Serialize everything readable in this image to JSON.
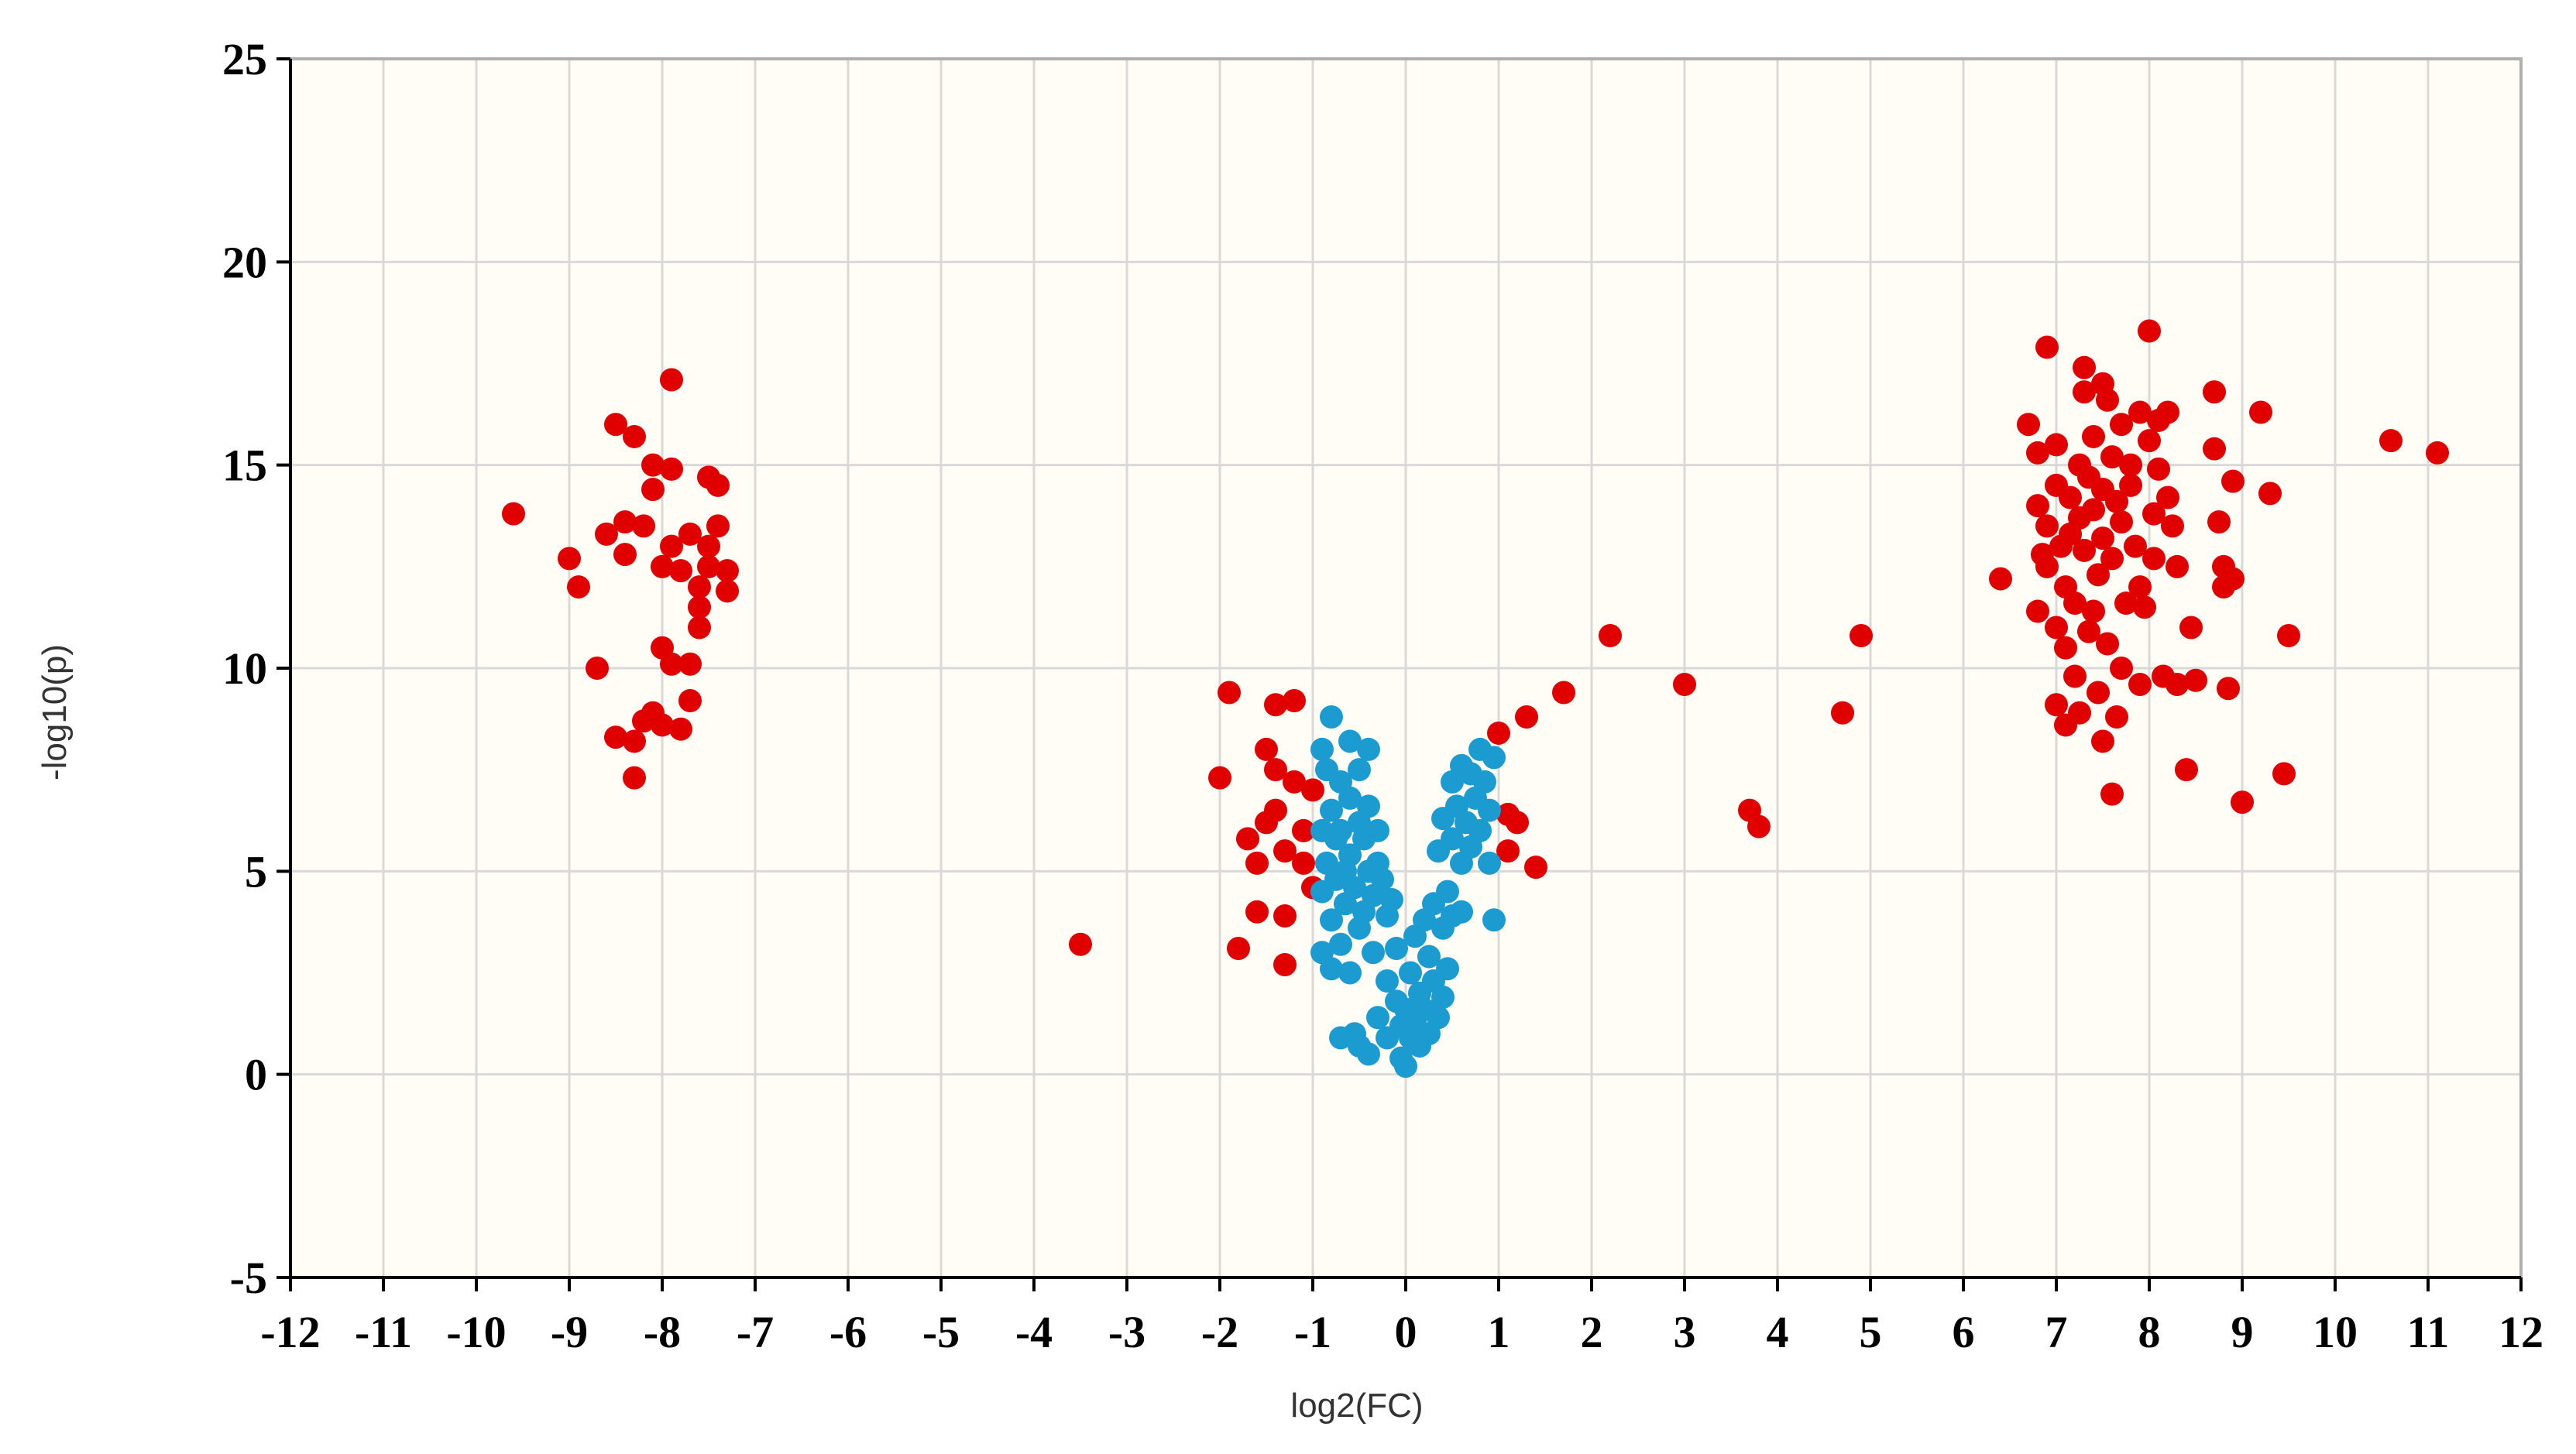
{
  "chart_data": {
    "type": "scatter",
    "title": "",
    "xlabel": "log2(FC)",
    "ylabel": "-log10(p)",
    "xlim": [
      -12,
      12
    ],
    "ylim": [
      -5,
      25
    ],
    "x_ticks": [
      -12,
      -11,
      -10,
      -9,
      -8,
      -7,
      -6,
      -5,
      -4,
      -3,
      -2,
      -1,
      0,
      1,
      2,
      3,
      4,
      5,
      6,
      7,
      8,
      9,
      10,
      11,
      12
    ],
    "y_ticks": [
      25,
      20,
      15,
      10,
      5,
      0,
      -5
    ],
    "grid": true,
    "plot_background": "#fffdf5",
    "grid_color": "#d9d9d9",
    "series": [
      {
        "color": "#e00000",
        "points": [
          [
            -9.6,
            13.8
          ],
          [
            -9.0,
            12.7
          ],
          [
            -8.9,
            12.0
          ],
          [
            -8.7,
            10.0
          ],
          [
            -8.6,
            13.3
          ],
          [
            -8.5,
            16.0
          ],
          [
            -8.5,
            8.3
          ],
          [
            -8.4,
            13.6
          ],
          [
            -8.4,
            12.8
          ],
          [
            -8.3,
            15.7
          ],
          [
            -8.3,
            7.3
          ],
          [
            -8.3,
            8.2
          ],
          [
            -8.2,
            13.5
          ],
          [
            -8.2,
            8.7
          ],
          [
            -8.1,
            15.0
          ],
          [
            -8.1,
            14.4
          ],
          [
            -8.1,
            8.9
          ],
          [
            -8.0,
            12.5
          ],
          [
            -8.0,
            10.5
          ],
          [
            -8.0,
            8.6
          ],
          [
            -7.9,
            17.1
          ],
          [
            -7.9,
            14.9
          ],
          [
            -7.9,
            13.0
          ],
          [
            -7.9,
            10.1
          ],
          [
            -7.8,
            12.4
          ],
          [
            -7.8,
            8.5
          ],
          [
            -7.7,
            10.1
          ],
          [
            -7.7,
            9.2
          ],
          [
            -7.7,
            13.3
          ],
          [
            -7.6,
            12.0
          ],
          [
            -7.6,
            11.5
          ],
          [
            -7.6,
            11.0
          ],
          [
            -7.5,
            14.7
          ],
          [
            -7.5,
            13.0
          ],
          [
            -7.5,
            12.5
          ],
          [
            -7.4,
            14.5
          ],
          [
            -7.4,
            13.5
          ],
          [
            -7.3,
            12.4
          ],
          [
            -7.3,
            11.9
          ],
          [
            -3.5,
            3.2
          ],
          [
            -2.0,
            7.3
          ],
          [
            -1.9,
            9.4
          ],
          [
            -1.8,
            3.1
          ],
          [
            -1.7,
            5.8
          ],
          [
            -1.6,
            5.2
          ],
          [
            -1.6,
            4.0
          ],
          [
            -1.5,
            8.0
          ],
          [
            -1.5,
            6.2
          ],
          [
            -1.4,
            9.1
          ],
          [
            -1.4,
            7.5
          ],
          [
            -1.4,
            6.5
          ],
          [
            -1.3,
            3.9
          ],
          [
            -1.3,
            2.7
          ],
          [
            -1.3,
            5.5
          ],
          [
            -1.2,
            9.2
          ],
          [
            -1.2,
            7.2
          ],
          [
            -1.1,
            6.0
          ],
          [
            -1.1,
            5.2
          ],
          [
            -1.0,
            7.0
          ],
          [
            -1.0,
            4.6
          ],
          [
            1.0,
            8.4
          ],
          [
            1.1,
            6.4
          ],
          [
            1.1,
            5.5
          ],
          [
            1.2,
            6.2
          ],
          [
            1.3,
            8.8
          ],
          [
            1.4,
            5.1
          ],
          [
            1.7,
            9.4
          ],
          [
            2.2,
            10.8
          ],
          [
            3.0,
            9.6
          ],
          [
            3.7,
            6.5
          ],
          [
            3.8,
            6.1
          ],
          [
            4.7,
            8.9
          ],
          [
            4.9,
            10.8
          ],
          [
            6.4,
            12.2
          ],
          [
            6.7,
            16.0
          ],
          [
            6.8,
            15.3
          ],
          [
            6.8,
            14.0
          ],
          [
            6.8,
            11.4
          ],
          [
            6.85,
            12.8
          ],
          [
            6.9,
            17.9
          ],
          [
            6.9,
            13.5
          ],
          [
            6.9,
            12.5
          ],
          [
            7.0,
            15.5
          ],
          [
            7.0,
            14.5
          ],
          [
            7.0,
            11.0
          ],
          [
            7.0,
            9.1
          ],
          [
            7.05,
            13.0
          ],
          [
            7.1,
            12.0
          ],
          [
            7.1,
            10.5
          ],
          [
            7.1,
            8.6
          ],
          [
            7.15,
            14.2
          ],
          [
            7.15,
            13.3
          ],
          [
            7.2,
            11.6
          ],
          [
            7.2,
            9.8
          ],
          [
            7.25,
            15.0
          ],
          [
            7.25,
            13.7
          ],
          [
            7.25,
            8.9
          ],
          [
            7.3,
            17.4
          ],
          [
            7.3,
            16.8
          ],
          [
            7.3,
            12.9
          ],
          [
            7.35,
            14.7
          ],
          [
            7.35,
            10.9
          ],
          [
            7.4,
            15.7
          ],
          [
            7.4,
            13.9
          ],
          [
            7.4,
            11.4
          ],
          [
            7.45,
            9.4
          ],
          [
            7.45,
            12.3
          ],
          [
            7.5,
            17.0
          ],
          [
            7.5,
            14.4
          ],
          [
            7.5,
            13.2
          ],
          [
            7.5,
            8.2
          ],
          [
            7.55,
            16.6
          ],
          [
            7.55,
            10.6
          ],
          [
            7.6,
            15.2
          ],
          [
            7.6,
            12.7
          ],
          [
            7.6,
            6.9
          ],
          [
            7.65,
            14.1
          ],
          [
            7.65,
            8.8
          ],
          [
            7.7,
            16.0
          ],
          [
            7.7,
            13.6
          ],
          [
            7.7,
            10.0
          ],
          [
            7.75,
            11.6
          ],
          [
            7.8,
            15.0
          ],
          [
            7.8,
            14.5
          ],
          [
            7.85,
            13.0
          ],
          [
            7.9,
            16.3
          ],
          [
            7.9,
            12.0
          ],
          [
            7.9,
            9.6
          ],
          [
            7.95,
            11.5
          ],
          [
            8.0,
            18.3
          ],
          [
            8.0,
            15.6
          ],
          [
            8.05,
            13.8
          ],
          [
            8.05,
            12.7
          ],
          [
            8.1,
            16.1
          ],
          [
            8.1,
            14.9
          ],
          [
            8.15,
            9.8
          ],
          [
            8.2,
            16.3
          ],
          [
            8.2,
            14.2
          ],
          [
            8.25,
            13.5
          ],
          [
            8.3,
            12.5
          ],
          [
            8.3,
            9.6
          ],
          [
            8.4,
            7.5
          ],
          [
            8.45,
            11.0
          ],
          [
            8.5,
            9.7
          ],
          [
            8.7,
            16.8
          ],
          [
            8.7,
            15.4
          ],
          [
            8.75,
            13.6
          ],
          [
            8.8,
            12.5
          ],
          [
            8.8,
            12.0
          ],
          [
            8.85,
            9.5
          ],
          [
            8.9,
            14.6
          ],
          [
            8.9,
            12.2
          ],
          [
            9.0,
            6.7
          ],
          [
            9.2,
            16.3
          ],
          [
            9.3,
            14.3
          ],
          [
            9.45,
            7.4
          ],
          [
            9.5,
            10.8
          ],
          [
            10.6,
            15.6
          ],
          [
            11.1,
            15.3
          ]
        ]
      },
      {
        "color": "#1c9bd1",
        "points": [
          [
            -0.9,
            8.0
          ],
          [
            -0.9,
            6.0
          ],
          [
            -0.9,
            4.5
          ],
          [
            -0.9,
            3.0
          ],
          [
            -0.85,
            7.5
          ],
          [
            -0.85,
            5.2
          ],
          [
            -0.8,
            8.8
          ],
          [
            -0.8,
            6.5
          ],
          [
            -0.8,
            3.8
          ],
          [
            -0.8,
            2.6
          ],
          [
            -0.75,
            5.8
          ],
          [
            -0.75,
            4.8
          ],
          [
            -0.7,
            7.2
          ],
          [
            -0.7,
            6.0
          ],
          [
            -0.7,
            3.2
          ],
          [
            -0.7,
            0.9
          ],
          [
            -0.65,
            5.0
          ],
          [
            -0.65,
            4.2
          ],
          [
            -0.6,
            8.2
          ],
          [
            -0.6,
            6.8
          ],
          [
            -0.6,
            5.4
          ],
          [
            -0.6,
            2.5
          ],
          [
            -0.55,
            4.6
          ],
          [
            -0.55,
            1.0
          ],
          [
            -0.5,
            7.5
          ],
          [
            -0.5,
            6.2
          ],
          [
            -0.5,
            3.6
          ],
          [
            -0.5,
            0.7
          ],
          [
            -0.45,
            5.8
          ],
          [
            -0.45,
            4.0
          ],
          [
            -0.4,
            8.0
          ],
          [
            -0.4,
            6.6
          ],
          [
            -0.4,
            5.0
          ],
          [
            -0.4,
            0.5
          ],
          [
            -0.35,
            4.4
          ],
          [
            -0.35,
            3.0
          ],
          [
            -0.3,
            6.0
          ],
          [
            -0.3,
            5.2
          ],
          [
            -0.3,
            1.4
          ],
          [
            -0.25,
            4.8
          ],
          [
            -0.2,
            3.9
          ],
          [
            -0.2,
            2.3
          ],
          [
            -0.2,
            0.9
          ],
          [
            -0.15,
            4.3
          ],
          [
            -0.1,
            3.1
          ],
          [
            -0.1,
            1.8
          ],
          [
            -0.05,
            1.2
          ],
          [
            -0.05,
            0.4
          ],
          [
            0.0,
            0.2
          ],
          [
            0.0,
            1.6
          ],
          [
            0.05,
            2.5
          ],
          [
            0.05,
            0.9
          ],
          [
            0.1,
            3.4
          ],
          [
            0.1,
            1.3
          ],
          [
            0.15,
            2.0
          ],
          [
            0.15,
            0.7
          ],
          [
            0.2,
            3.8
          ],
          [
            0.2,
            1.6
          ],
          [
            0.25,
            2.9
          ],
          [
            0.25,
            1.0
          ],
          [
            0.3,
            4.2
          ],
          [
            0.3,
            2.3
          ],
          [
            0.35,
            5.5
          ],
          [
            0.35,
            1.4
          ],
          [
            0.4,
            6.3
          ],
          [
            0.4,
            3.6
          ],
          [
            0.4,
            1.9
          ],
          [
            0.45,
            4.5
          ],
          [
            0.45,
            2.6
          ],
          [
            0.5,
            7.2
          ],
          [
            0.5,
            5.8
          ],
          [
            0.5,
            3.9
          ],
          [
            0.55,
            6.6
          ],
          [
            0.6,
            7.6
          ],
          [
            0.6,
            5.2
          ],
          [
            0.6,
            4.0
          ],
          [
            0.65,
            6.2
          ],
          [
            0.7,
            7.4
          ],
          [
            0.7,
            5.6
          ],
          [
            0.75,
            6.8
          ],
          [
            0.8,
            8.0
          ],
          [
            0.8,
            6.0
          ],
          [
            0.85,
            7.2
          ],
          [
            0.9,
            6.5
          ],
          [
            0.9,
            5.2
          ],
          [
            0.95,
            3.8
          ],
          [
            0.95,
            7.8
          ]
        ]
      }
    ]
  }
}
